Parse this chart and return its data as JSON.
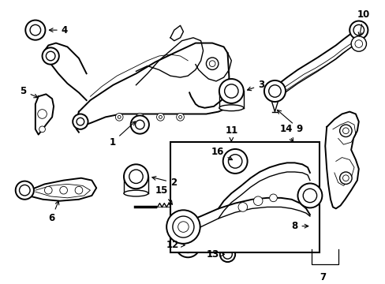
{
  "background_color": "#ffffff",
  "fig_width": 4.89,
  "fig_height": 3.6,
  "dpi": 100,
  "label_fontsize": 8.5,
  "lw": 1.0,
  "lw_thin": 0.6
}
